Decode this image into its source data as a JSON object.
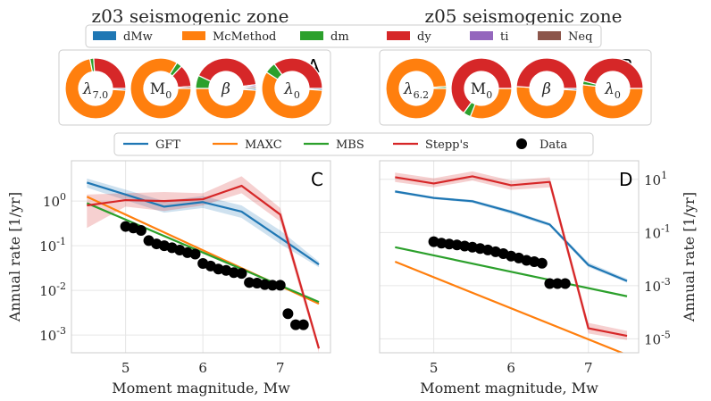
{
  "titles": {
    "left": "z03 seismogenic zone",
    "right": "z05 seismogenic zone"
  },
  "colors": {
    "blue": "#1f77b4",
    "orange": "#ff7f0e",
    "green": "#2ca02c",
    "red": "#d62728",
    "purple": "#9467bd",
    "brown": "#8c564b",
    "black": "#000000"
  },
  "top_legend": [
    {
      "label": "dMw",
      "color": "#1f77b4"
    },
    {
      "label": "McMethod",
      "color": "#ff7f0e"
    },
    {
      "label": "dm",
      "color": "#2ca02c"
    },
    {
      "label": "dy",
      "color": "#d62728"
    },
    {
      "label": "ti",
      "color": "#9467bd"
    },
    {
      "label": "Neq",
      "color": "#8c564b"
    }
  ],
  "donut_panels": [
    {
      "letter": "A",
      "donuts": [
        {
          "label": "λ",
          "sub": "7.0",
          "slices": [
            {
              "name": "dMw",
              "value": 1
            },
            {
              "name": "McMethod",
              "value": 71
            },
            {
              "name": "dm",
              "value": 2
            },
            {
              "name": "dy",
              "value": 26
            },
            {
              "name": "ti",
              "value": 0
            },
            {
              "name": "Neq",
              "value": 0
            }
          ]
        },
        {
          "label": "M",
          "sub": "0",
          "slices": [
            {
              "name": "dMw",
              "value": 0
            },
            {
              "name": "McMethod",
              "value": 84
            },
            {
              "name": "dm",
              "value": 3
            },
            {
              "name": "dy",
              "value": 12
            },
            {
              "name": "ti",
              "value": 0
            },
            {
              "name": "Neq",
              "value": 1
            }
          ]
        },
        {
          "label": "β",
          "sub": "",
          "slices": [
            {
              "name": "dMw",
              "value": 1
            },
            {
              "name": "McMethod",
              "value": 49
            },
            {
              "name": "dm",
              "value": 7
            },
            {
              "name": "dy",
              "value": 41
            },
            {
              "name": "ti",
              "value": 1
            },
            {
              "name": "Neq",
              "value": 1
            }
          ]
        },
        {
          "label": "λ",
          "sub": "0",
          "slices": [
            {
              "name": "dMw",
              "value": 1
            },
            {
              "name": "McMethod",
              "value": 58
            },
            {
              "name": "dm",
              "value": 6
            },
            {
              "name": "dy",
              "value": 35
            },
            {
              "name": "ti",
              "value": 0
            },
            {
              "name": "Neq",
              "value": 0
            }
          ]
        }
      ]
    },
    {
      "letter": "B",
      "donuts": [
        {
          "label": "λ",
          "sub": "6.2",
          "slices": [
            {
              "name": "dMw",
              "value": 0
            },
            {
              "name": "McMethod",
              "value": 99
            },
            {
              "name": "dm",
              "value": 1
            },
            {
              "name": "dy",
              "value": 0
            },
            {
              "name": "ti",
              "value": 0
            },
            {
              "name": "Neq",
              "value": 0
            }
          ]
        },
        {
          "label": "M",
          "sub": "0",
          "slices": [
            {
              "name": "dMw",
              "value": 0
            },
            {
              "name": "McMethod",
              "value": 31
            },
            {
              "name": "dm",
              "value": 4
            },
            {
              "name": "dy",
              "value": 65
            },
            {
              "name": "ti",
              "value": 0
            },
            {
              "name": "Neq",
              "value": 0
            }
          ]
        },
        {
          "label": "β",
          "sub": "",
          "slices": [
            {
              "name": "dMw",
              "value": 1
            },
            {
              "name": "McMethod",
              "value": 50
            },
            {
              "name": "dm",
              "value": 0
            },
            {
              "name": "dy",
              "value": 49
            },
            {
              "name": "ti",
              "value": 0
            },
            {
              "name": "Neq",
              "value": 0
            }
          ]
        },
        {
          "label": "λ",
          "sub": "0",
          "slices": [
            {
              "name": "dMw",
              "value": 0
            },
            {
              "name": "McMethod",
              "value": 52
            },
            {
              "name": "dm",
              "value": 2
            },
            {
              "name": "dy",
              "value": 46
            },
            {
              "name": "ti",
              "value": 0
            },
            {
              "name": "Neq",
              "value": 0
            }
          ]
        }
      ]
    }
  ],
  "mid_legend": [
    {
      "label": "GFT",
      "color": "#1f77b4",
      "kind": "line"
    },
    {
      "label": "MAXC",
      "color": "#ff7f0e",
      "kind": "line"
    },
    {
      "label": "MBS",
      "color": "#2ca02c",
      "kind": "line"
    },
    {
      "label": "Stepp's",
      "color": "#d62728",
      "kind": "line"
    },
    {
      "label": "Data",
      "color": "#000000",
      "kind": "dot"
    }
  ],
  "chart_data": [
    {
      "type": "line",
      "letter": "C",
      "xlabel": "Moment magnitude, Mw",
      "ylabel": "Annual rate [1/yr]",
      "yscale": "log",
      "xlim": [
        4.3,
        7.65
      ],
      "ylim": [
        0.0004,
        8
      ],
      "xticks": [
        5,
        6,
        7
      ],
      "yticks": [
        {
          "value": 1,
          "label": "10^0"
        },
        {
          "value": 0.1,
          "label": "10^-1"
        },
        {
          "value": 0.01,
          "label": "10^-2"
        },
        {
          "value": 0.001,
          "label": "10^-3"
        }
      ],
      "series": [
        {
          "name": "GFT",
          "color": "#1f77b4",
          "x": [
            4.5,
            5.0,
            5.5,
            6.0,
            6.5,
            7.0,
            7.5
          ],
          "y": [
            2.6,
            1.4,
            0.75,
            0.95,
            0.58,
            0.15,
            0.038
          ],
          "band_low": [
            2.0,
            1.05,
            0.55,
            0.7,
            0.42,
            0.11,
            0.033
          ],
          "band_high": [
            3.2,
            1.8,
            1.0,
            1.3,
            0.8,
            0.22,
            0.044
          ]
        },
        {
          "name": "MAXC",
          "color": "#ff7f0e",
          "x": [
            4.5,
            7.5
          ],
          "y": [
            1.25,
            0.005
          ]
        },
        {
          "name": "MBS",
          "color": "#2ca02c",
          "x": [
            4.5,
            7.5
          ],
          "y": [
            0.9,
            0.0055
          ]
        },
        {
          "name": "Stepp's",
          "color": "#d62728",
          "x": [
            4.5,
            5.0,
            5.5,
            6.0,
            6.5,
            7.0,
            7.5
          ],
          "y": [
            0.8,
            1.05,
            1.0,
            1.1,
            2.2,
            0.5,
            0.0005
          ],
          "band_low": [
            0.25,
            0.75,
            0.6,
            0.8,
            1.5,
            0.35,
            0.0004
          ],
          "band_high": [
            1.4,
            1.5,
            1.6,
            1.5,
            3.6,
            0.7,
            0.0006
          ]
        }
      ],
      "points": {
        "name": "Data",
        "x": [
          5.0,
          5.1,
          5.2,
          5.3,
          5.4,
          5.5,
          5.6,
          5.7,
          5.8,
          5.9,
          6.0,
          6.1,
          6.2,
          6.3,
          6.4,
          6.5,
          6.6,
          6.7,
          6.8,
          6.9,
          7.0,
          7.1,
          7.2,
          7.3
        ],
        "y": [
          0.27,
          0.25,
          0.22,
          0.13,
          0.11,
          0.1,
          0.09,
          0.08,
          0.07,
          0.065,
          0.04,
          0.035,
          0.03,
          0.028,
          0.025,
          0.024,
          0.015,
          0.0145,
          0.0135,
          0.013,
          0.013,
          0.003,
          0.0017,
          0.0017
        ]
      }
    },
    {
      "type": "line",
      "letter": "D",
      "xlabel": "Moment magnitude, Mw",
      "ylabel": "Annual rate [1/yr]",
      "yscale": "log",
      "ylabel_side": "right",
      "xlim": [
        4.3,
        7.65
      ],
      "ylim": [
        3e-06,
        50
      ],
      "xticks": [
        5,
        6,
        7
      ],
      "yticks": [
        {
          "value": 10,
          "label": "10^1"
        },
        {
          "value": 0.1,
          "label": "10^-1"
        },
        {
          "value": 0.001,
          "label": "10^-3"
        },
        {
          "value": 1e-05,
          "label": "10^-5"
        }
      ],
      "series": [
        {
          "name": "GFT",
          "color": "#1f77b4",
          "x": [
            4.5,
            5.0,
            5.5,
            6.0,
            6.5,
            7.0,
            7.5
          ],
          "y": [
            3.5,
            2.0,
            1.5,
            0.6,
            0.2,
            0.006,
            0.0015
          ],
          "band_low": [
            3.1,
            1.8,
            1.3,
            0.5,
            0.17,
            0.005,
            0.0013
          ],
          "band_high": [
            3.9,
            2.2,
            1.7,
            0.7,
            0.23,
            0.0075,
            0.0018
          ]
        },
        {
          "name": "MAXC",
          "color": "#ff7f0e",
          "x": [
            4.5,
            7.5
          ],
          "y": [
            0.008,
            2.5e-06
          ]
        },
        {
          "name": "MBS",
          "color": "#2ca02c",
          "x": [
            4.5,
            7.5
          ],
          "y": [
            0.028,
            0.0004
          ]
        },
        {
          "name": "Stepp's",
          "color": "#d62728",
          "x": [
            4.5,
            5.0,
            5.5,
            6.0,
            6.5,
            7.0,
            7.5
          ],
          "y": [
            12,
            7,
            13,
            6,
            8,
            2.5e-05,
            1.3e-05
          ],
          "band_low": [
            8,
            5,
            9,
            4,
            5,
            1.6e-05,
            9e-06
          ],
          "band_high": [
            18,
            11,
            20,
            9,
            12,
            4e-05,
            2e-05
          ]
        }
      ],
      "points": {
        "name": "Data",
        "x": [
          5.0,
          5.1,
          5.2,
          5.3,
          5.4,
          5.5,
          5.6,
          5.7,
          5.8,
          5.9,
          6.0,
          6.1,
          6.2,
          6.3,
          6.4,
          6.5,
          6.6,
          6.7
        ],
        "y": [
          0.045,
          0.04,
          0.037,
          0.034,
          0.031,
          0.028,
          0.025,
          0.022,
          0.019,
          0.016,
          0.013,
          0.011,
          0.009,
          0.008,
          0.007,
          0.0012,
          0.0012,
          0.0012
        ]
      }
    }
  ]
}
